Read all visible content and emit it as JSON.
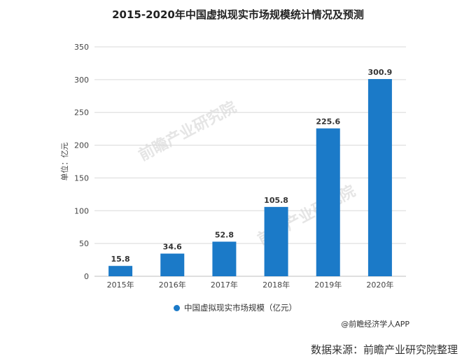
{
  "title": "2015-2020年中国虚拟现实市场规模统计情况及预测",
  "legend_label": "中国虚拟现实市场规模（亿元）",
  "credit": "@前瞻经济学人APP",
  "source": "数据来源：前瞻产业研究院整理",
  "watermark_text": "前瞻产业研究院",
  "colors": {
    "bar": "#1b7ac8",
    "grid": "#d9d9d9"
  },
  "chart_data": {
    "type": "bar",
    "title": "2015-2020年中国虚拟现实市场规模统计情况及预测",
    "ylabel": "单位：亿元",
    "xlabel": "",
    "categories": [
      "2015年",
      "2016年",
      "2017年",
      "2018年",
      "2019年",
      "2020年"
    ],
    "series": [
      {
        "name": "中国虚拟现实市场规模（亿元）",
        "values": [
          15.8,
          34.6,
          52.8,
          105.8,
          225.6,
          300.9
        ]
      }
    ],
    "ylim": [
      0,
      350
    ],
    "yticks": [
      0,
      50,
      100,
      150,
      200,
      250,
      300,
      350
    ],
    "grid": true,
    "legend_position": "bottom"
  }
}
